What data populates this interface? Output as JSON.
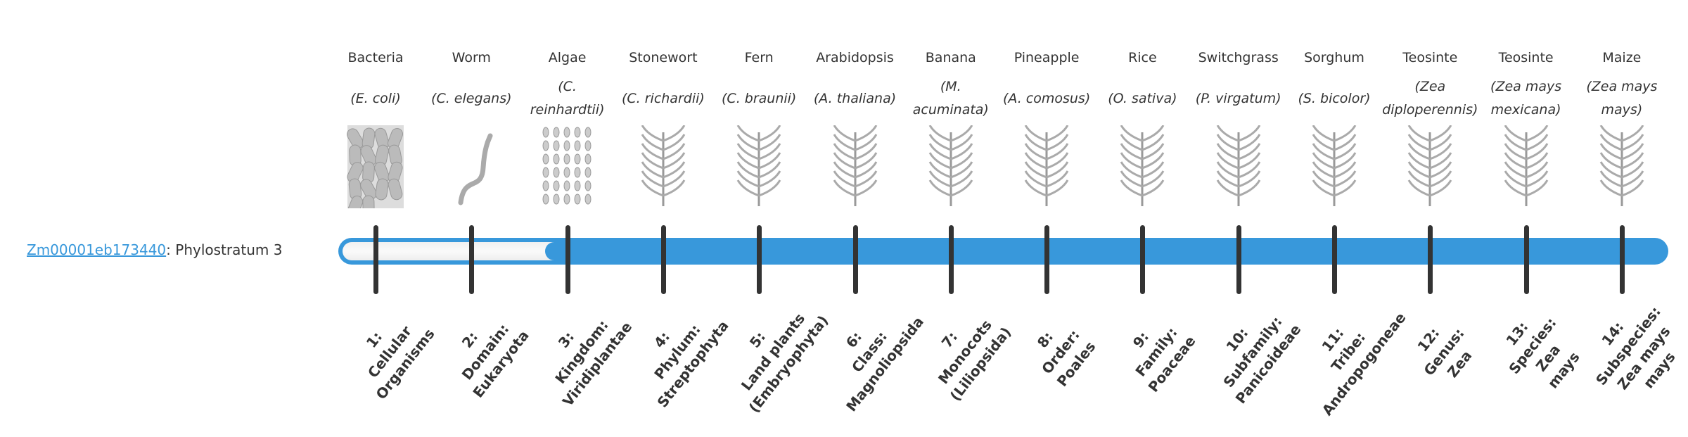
{
  "gene": {
    "id": "Zm00001eb173440",
    "separator": ": ",
    "text": "Phylostratum 3"
  },
  "colors": {
    "bar": "#3898db",
    "tick": "#333333",
    "link": "#3898db"
  },
  "phylostratum_value": 3,
  "organisms": [
    {
      "common": "Bacteria",
      "scientific": "(E. coli)",
      "icon": "bacteria-rods"
    },
    {
      "common": "Worm",
      "scientific": "(C. elegans)",
      "icon": "worm"
    },
    {
      "common": "Algae",
      "scientific": "(C. reinhardtii)",
      "icon": "algae-cells"
    },
    {
      "common": "Stonewort",
      "scientific": "(C. richardii)",
      "icon": "stonewort"
    },
    {
      "common": "Fern",
      "scientific": "(C. braunii)",
      "icon": "fern"
    },
    {
      "common": "Arabidopsis",
      "scientific": "(A. thaliana)",
      "icon": "arabidopsis"
    },
    {
      "common": "Banana",
      "scientific": "(M. acuminata)",
      "icon": "banana-plant"
    },
    {
      "common": "Pineapple",
      "scientific": "(A. comosus)",
      "icon": "pineapple"
    },
    {
      "common": "Rice",
      "scientific": "(O. sativa)",
      "icon": "rice"
    },
    {
      "common": "Switchgrass",
      "scientific": "(P. virgatum)",
      "icon": "switchgrass"
    },
    {
      "common": "Sorghum",
      "scientific": "(S. bicolor)",
      "icon": "sorghum"
    },
    {
      "common": "Teosinte",
      "scientific": "(Zea diploperennis)",
      "icon": "teosinte"
    },
    {
      "common": "Teosinte",
      "scientific": "(Zea mays mexicana)",
      "icon": "teosinte"
    },
    {
      "common": "Maize",
      "scientific": "(Zea mays mays)",
      "icon": "maize"
    }
  ],
  "strata": [
    [
      "1:",
      "Cellular",
      "Organisms"
    ],
    [
      "2:",
      "Domain:",
      "Eukaryota"
    ],
    [
      "3:",
      "Kingdom:",
      "Viridiplantae"
    ],
    [
      "4:",
      "Phylum:",
      "Streptophyta"
    ],
    [
      "5:",
      "Land plants",
      "(Embryophyta)"
    ],
    [
      "6:",
      "Class:",
      "Magnoliopsida"
    ],
    [
      "7:",
      "Monocots",
      "(Liliopsida)"
    ],
    [
      "8:",
      "Order:",
      "Poales"
    ],
    [
      "9:",
      "Family:",
      "Poaceae"
    ],
    [
      "10:",
      "Subfamily:",
      "Panicoideae"
    ],
    [
      "11:",
      "Tribe:",
      "Andropogoneae"
    ],
    [
      "12:",
      "Genus:",
      "Zea"
    ],
    [
      "13:",
      "Species:",
      "Zea",
      "mays"
    ],
    [
      "14:",
      "Subspecies:",
      "Zea mays",
      "mays"
    ]
  ]
}
